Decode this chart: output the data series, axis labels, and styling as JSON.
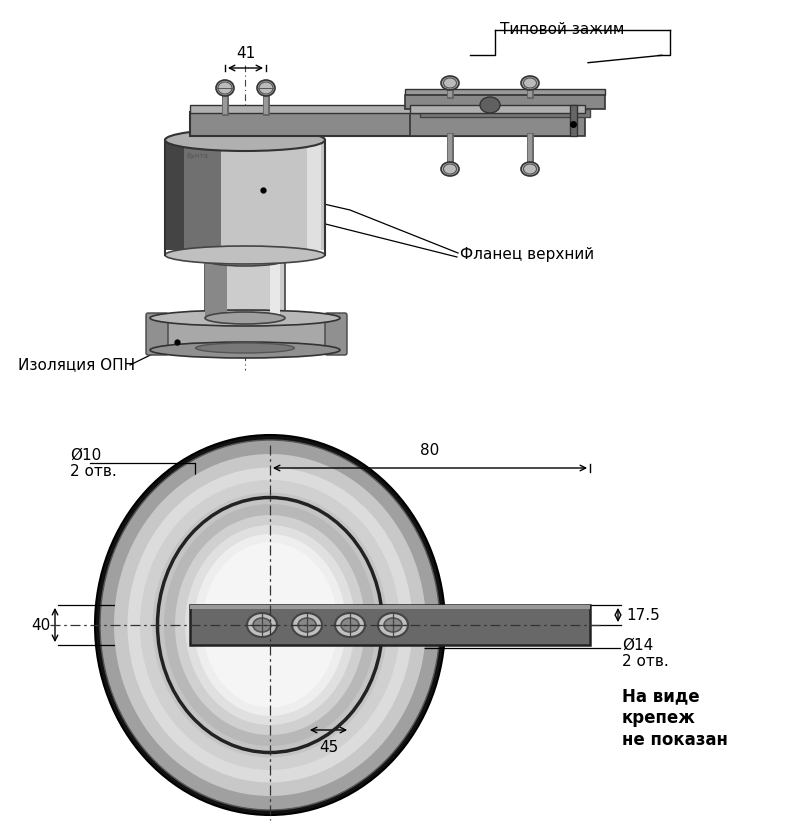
{
  "bg_color": "#ffffff",
  "fig_width": 8.0,
  "fig_height": 8.32,
  "top_view": {
    "label_tipovoy": "Типовой зажим",
    "label_flanets": "Фланец верхний",
    "label_izolyacia": "Изоляция ОПН",
    "dim_41": "41"
  },
  "bottom_view": {
    "label_d10": "Ø10",
    "label_2otv1": "2 отв.",
    "label_80": "80",
    "label_17_5": "17.5",
    "label_40": "40",
    "label_d14": "Ø14",
    "label_2otv2": "2 отв.",
    "label_45": "45",
    "label_note1": "На виде",
    "label_note2": "крепеж",
    "label_note3": "не показан"
  }
}
